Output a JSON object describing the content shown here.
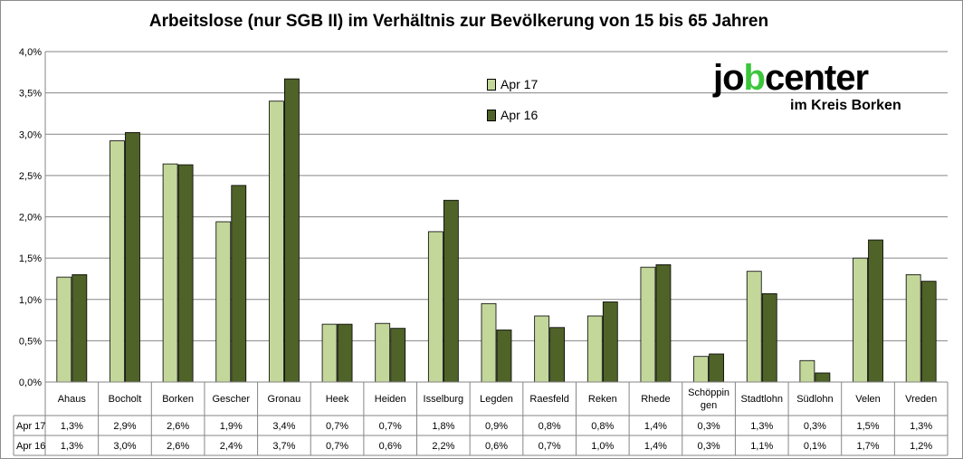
{
  "chart_data": {
    "type": "bar",
    "title": "Arbeitslose (nur SGB II) im Verhältnis zur Bevölkerung von 15 bis 65 Jahren",
    "categories": [
      "Ahaus",
      "Bocholt",
      "Borken",
      "Gescher",
      "Gronau",
      "Heek",
      "Heiden",
      "Isselburg",
      "Legden",
      "Raesfeld",
      "Reken",
      "Rhede",
      "Schöppin gen",
      "Stadtlohn",
      "Südlohn",
      "Velen",
      "Vreden"
    ],
    "series": [
      {
        "name": "Apr 17",
        "color": "#c4d79b",
        "values": [
          1.27,
          2.92,
          2.64,
          1.94,
          3.4,
          0.7,
          0.71,
          1.82,
          0.95,
          0.8,
          0.8,
          1.39,
          0.31,
          1.34,
          0.26,
          1.5,
          1.3
        ],
        "labels": [
          "1,3%",
          "2,9%",
          "2,6%",
          "1,9%",
          "3,4%",
          "0,7%",
          "0,7%",
          "1,8%",
          "0,9%",
          "0,8%",
          "0,8%",
          "1,4%",
          "0,3%",
          "1,3%",
          "0,3%",
          "1,5%",
          "1,3%"
        ]
      },
      {
        "name": "Apr 16",
        "color": "#4f6228",
        "values": [
          1.3,
          3.02,
          2.63,
          2.38,
          3.67,
          0.7,
          0.65,
          2.2,
          0.63,
          0.66,
          0.97,
          1.42,
          0.34,
          1.07,
          0.11,
          1.72,
          1.22
        ],
        "labels": [
          "1,3%",
          "3,0%",
          "2,6%",
          "2,4%",
          "3,7%",
          "0,7%",
          "0,6%",
          "2,2%",
          "0,6%",
          "0,7%",
          "1,0%",
          "1,4%",
          "0,3%",
          "1,1%",
          "0,1%",
          "1,7%",
          "1,2%"
        ]
      }
    ],
    "ylim": [
      0,
      4
    ],
    "yticks": [
      0,
      0.5,
      1,
      1.5,
      2,
      2.5,
      3,
      3.5,
      4
    ],
    "ytick_labels": [
      "0,0%",
      "0,5%",
      "1,0%",
      "1,5%",
      "2,0%",
      "2,5%",
      "3,0%",
      "3,5%",
      "4,0%"
    ],
    "grid": true,
    "legend": "top-center",
    "data_table": true
  },
  "logo": {
    "main_pre": "jo",
    "main_mark": "b",
    "main_post": "center",
    "sub": "im Kreis Borken"
  }
}
